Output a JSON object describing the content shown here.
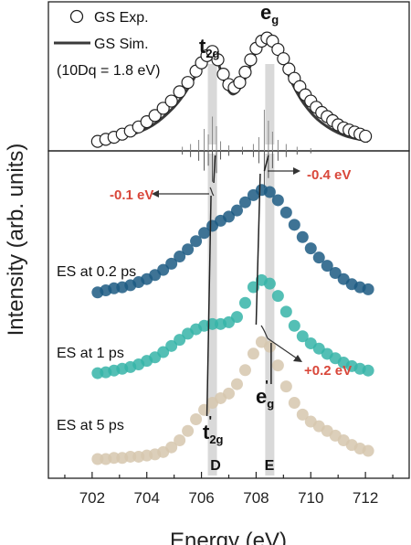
{
  "chart_data": {
    "type": "scatter",
    "xlabel": "Energy (eV)",
    "ylabel": "Intensity (arb. units)",
    "xlim": [
      700.4,
      713.6
    ],
    "xticks": [
      702,
      704,
      706,
      708,
      710,
      712
    ],
    "xtick_labels": [
      "702",
      "704",
      "706",
      "708",
      "710",
      "712"
    ],
    "legend": {
      "placement": "top-left",
      "exp_label": "GS Exp.",
      "sim_label": "GS Sim.",
      "param_label": "(10Dq = 1.8 eV)"
    },
    "peaks": {
      "t2g": {
        "base": "t",
        "sub": "2g",
        "energy": 706.4
      },
      "eg": {
        "base": "e",
        "sub": "g",
        "energy": 708.5
      },
      "t2g_prime": {
        "base": "t",
        "sub": "2g",
        "prime": "'",
        "energy": 706.3
      },
      "eg_prime": {
        "base": "e",
        "sub": "g",
        "prime": "'",
        "energy": 708.3
      }
    },
    "markers": [
      {
        "label": "D",
        "energy": 706.4
      },
      {
        "label": "E",
        "energy": 708.5
      }
    ],
    "shifts": [
      {
        "label": "-0.1 eV",
        "color": "#d9473a"
      },
      {
        "label": "-0.4 eV",
        "color": "#d9473a"
      },
      {
        "label": "+0.2 eV",
        "color": "#d9473a"
      }
    ],
    "gs_exp": {
      "x": [
        702.2,
        702.5,
        702.8,
        703.1,
        703.4,
        703.7,
        704.0,
        704.3,
        704.6,
        704.9,
        705.2,
        705.5,
        705.8,
        706.0,
        706.2,
        706.4,
        706.6,
        706.8,
        707.0,
        707.2,
        707.4,
        707.6,
        707.8,
        708.0,
        708.2,
        708.4,
        708.6,
        708.8,
        709.0,
        709.2,
        709.4,
        709.6,
        709.8,
        710.0,
        710.2,
        710.4,
        710.6,
        710.8,
        711.0,
        711.2,
        711.4,
        711.6,
        711.8,
        712.0
      ],
      "y": [
        0.03,
        0.05,
        0.07,
        0.1,
        0.13,
        0.17,
        0.22,
        0.28,
        0.35,
        0.42,
        0.51,
        0.6,
        0.71,
        0.79,
        0.86,
        0.9,
        0.82,
        0.68,
        0.58,
        0.55,
        0.6,
        0.7,
        0.82,
        0.93,
        1.0,
        1.03,
        1.0,
        0.92,
        0.83,
        0.73,
        0.64,
        0.56,
        0.48,
        0.42,
        0.36,
        0.31,
        0.27,
        0.23,
        0.19,
        0.16,
        0.14,
        0.12,
        0.1,
        0.08
      ]
    },
    "gs_sim": {
      "x": [
        702.2,
        702.6,
        703.0,
        703.4,
        703.8,
        704.2,
        704.6,
        705.0,
        705.3,
        705.6,
        705.9,
        706.1,
        706.3,
        706.5,
        706.7,
        706.9,
        707.1,
        707.3,
        707.5,
        707.7,
        707.9,
        708.1,
        708.3,
        708.5,
        708.7,
        708.9,
        709.1,
        709.3,
        709.6,
        709.9,
        710.2,
        710.6,
        711.0,
        711.4,
        711.8,
        712.1
      ],
      "y": [
        0.02,
        0.04,
        0.06,
        0.09,
        0.13,
        0.18,
        0.26,
        0.36,
        0.46,
        0.58,
        0.72,
        0.82,
        0.89,
        0.88,
        0.72,
        0.56,
        0.48,
        0.5,
        0.58,
        0.7,
        0.84,
        0.96,
        1.04,
        1.06,
        1.0,
        0.88,
        0.73,
        0.6,
        0.45,
        0.34,
        0.25,
        0.17,
        0.11,
        0.07,
        0.05,
        0.03
      ]
    },
    "sticks": [
      {
        "x": 705.3,
        "h": 0.03
      },
      {
        "x": 705.6,
        "h": 0.05
      },
      {
        "x": 705.9,
        "h": 0.08
      },
      {
        "x": 706.1,
        "h": 0.16
      },
      {
        "x": 706.25,
        "h": 0.12
      },
      {
        "x": 706.4,
        "h": 0.25
      },
      {
        "x": 706.55,
        "h": 0.18
      },
      {
        "x": 706.7,
        "h": 0.07
      },
      {
        "x": 707.0,
        "h": 0.04
      },
      {
        "x": 707.5,
        "h": 0.03
      },
      {
        "x": 707.9,
        "h": 0.05
      },
      {
        "x": 708.1,
        "h": 0.1
      },
      {
        "x": 708.3,
        "h": 0.3
      },
      {
        "x": 708.45,
        "h": 0.22
      },
      {
        "x": 708.6,
        "h": 0.14
      },
      {
        "x": 708.8,
        "h": 0.08
      },
      {
        "x": 709.1,
        "h": 0.05
      },
      {
        "x": 709.5,
        "h": 0.03
      },
      {
        "x": 710.0,
        "h": 0.02
      }
    ],
    "series": [
      {
        "name": "ES at 0.2 ps",
        "color": "#1c5a82",
        "x": [
          702.2,
          702.5,
          702.8,
          703.1,
          703.4,
          703.7,
          704.0,
          704.3,
          704.6,
          704.9,
          705.2,
          705.5,
          705.8,
          706.1,
          706.4,
          706.7,
          707.0,
          707.3,
          707.6,
          707.9,
          708.2,
          708.5,
          708.8,
          709.1,
          709.4,
          709.7,
          710.0,
          710.3,
          710.6,
          710.9,
          711.2,
          711.5,
          711.8,
          712.1
        ],
        "y": [
          0.02,
          0.04,
          0.06,
          0.07,
          0.09,
          0.12,
          0.15,
          0.19,
          0.24,
          0.3,
          0.37,
          0.44,
          0.52,
          0.6,
          0.67,
          0.72,
          0.76,
          0.82,
          0.9,
          0.97,
          1.02,
          1.0,
          0.92,
          0.8,
          0.68,
          0.56,
          0.45,
          0.36,
          0.28,
          0.21,
          0.15,
          0.1,
          0.07,
          0.05
        ]
      },
      {
        "name": "ES at 1 ps",
        "color": "#36b4a8",
        "x": [
          702.2,
          702.5,
          702.8,
          703.1,
          703.4,
          703.7,
          704.0,
          704.3,
          704.6,
          704.9,
          705.2,
          705.5,
          705.8,
          706.1,
          706.4,
          706.7,
          707.0,
          707.3,
          707.6,
          707.9,
          708.2,
          708.5,
          708.8,
          709.1,
          709.4,
          709.7,
          710.0,
          710.3,
          710.6,
          710.9,
          711.2,
          711.5,
          711.8,
          712.1
        ],
        "y": [
          0.02,
          0.03,
          0.05,
          0.07,
          0.09,
          0.12,
          0.16,
          0.2,
          0.26,
          0.33,
          0.4,
          0.47,
          0.52,
          0.56,
          0.58,
          0.58,
          0.6,
          0.66,
          0.82,
          1.0,
          1.08,
          1.04,
          0.9,
          0.72,
          0.56,
          0.44,
          0.36,
          0.3,
          0.24,
          0.19,
          0.14,
          0.1,
          0.07,
          0.05
        ]
      },
      {
        "name": "ES at 5 ps",
        "color": "#d6c7ae",
        "x": [
          702.2,
          702.5,
          702.8,
          703.1,
          703.4,
          703.7,
          704.0,
          704.3,
          704.6,
          704.9,
          705.2,
          705.5,
          705.8,
          706.1,
          706.4,
          706.7,
          707.0,
          707.3,
          707.6,
          707.9,
          708.2,
          708.5,
          708.8,
          709.1,
          709.4,
          709.7,
          710.0,
          710.3,
          710.6,
          710.9,
          711.2,
          711.5,
          711.8,
          712.1
        ],
        "y": [
          0.0,
          0.0,
          0.01,
          0.01,
          0.02,
          0.02,
          0.03,
          0.04,
          0.06,
          0.1,
          0.16,
          0.24,
          0.34,
          0.42,
          0.48,
          0.52,
          0.56,
          0.64,
          0.76,
          0.9,
          1.0,
          0.96,
          0.8,
          0.62,
          0.48,
          0.38,
          0.32,
          0.28,
          0.24,
          0.2,
          0.16,
          0.12,
          0.09,
          0.07
        ]
      }
    ]
  }
}
